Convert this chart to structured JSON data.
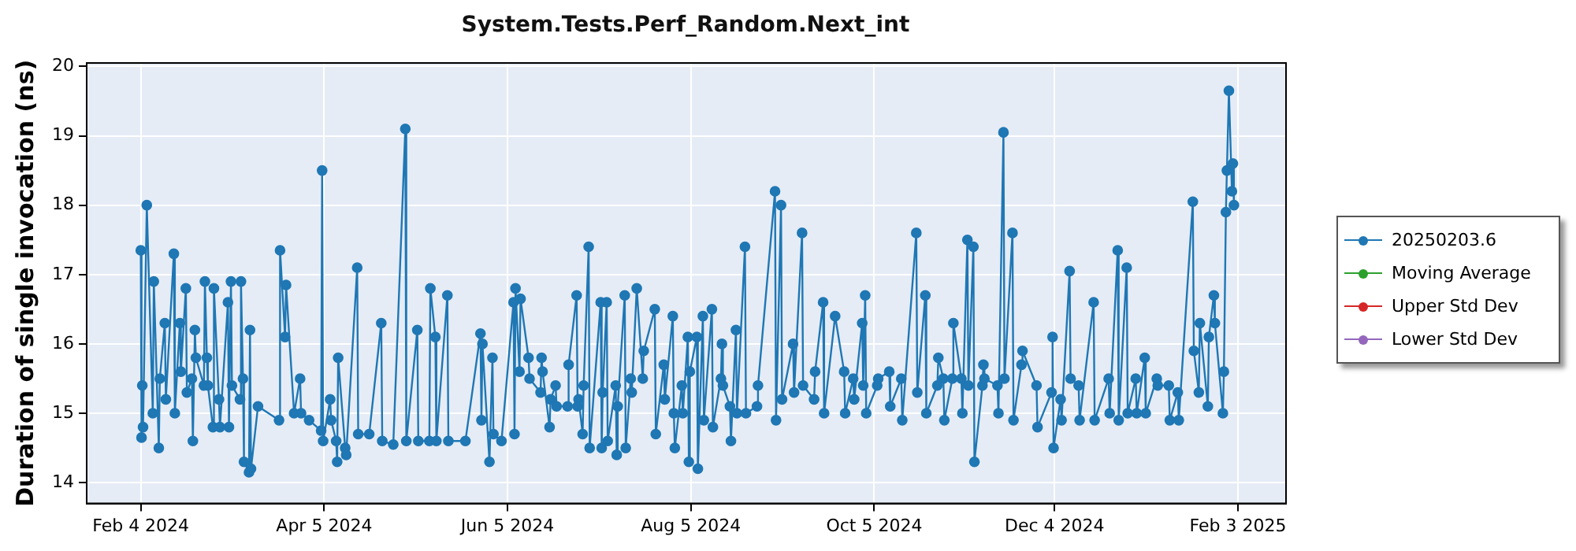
{
  "chart_data": {
    "type": "line",
    "title": "System.Tests.Perf_Random.Next_int",
    "ylabel": "Duration of single invocation (ns)",
    "xlim": [
      "2024-01-17",
      "2025-02-19"
    ],
    "xticks": [
      {
        "value": "2024-02-04",
        "label": "Feb 4 2024"
      },
      {
        "value": "2024-04-05",
        "label": "Apr 5 2024"
      },
      {
        "value": "2024-06-05",
        "label": "Jun 5 2024"
      },
      {
        "value": "2024-08-05",
        "label": "Aug 5 2024"
      },
      {
        "value": "2024-10-05",
        "label": "Oct 5 2024"
      },
      {
        "value": "2024-12-04",
        "label": "Dec 4 2024"
      },
      {
        "value": "2025-02-03",
        "label": "Feb 3 2025"
      }
    ],
    "ylim": [
      13.7,
      20.05
    ],
    "yticks": [
      14,
      15,
      16,
      17,
      18,
      19,
      20
    ],
    "grid": true,
    "legend": "right",
    "marker": "circle",
    "line_style": "solid",
    "series": [
      {
        "name": "20250203.6",
        "color": "#1f77b4",
        "x": [
          "2024-02-04",
          "2024-02-04T06:00",
          "2024-02-04T12:00",
          "2024-02-04T18:00",
          "2024-02-06",
          "2024-02-08",
          "2024-02-08T08:00",
          "2024-02-10",
          "2024-02-10T08:00",
          "2024-02-12",
          "2024-02-12T08:00",
          "2024-02-15",
          "2024-02-15T08:00",
          "2024-02-17",
          "2024-02-17T08:00",
          "2024-02-19",
          "2024-02-19T08:00",
          "2024-02-21",
          "2024-02-21T08:00",
          "2024-02-22",
          "2024-02-22T08:00",
          "2024-02-25",
          "2024-02-25T08:00",
          "2024-02-26",
          "2024-02-26T08:00",
          "2024-02-28",
          "2024-02-28T08:00",
          "2024-03-01",
          "2024-03-01T08:00",
          "2024-03-04",
          "2024-03-04T08:00",
          "2024-03-05",
          "2024-03-05T08:00",
          "2024-03-08",
          "2024-03-08T08:00",
          "2024-03-09",
          "2024-03-09T08:00",
          "2024-03-11",
          "2024-03-11T08:00",
          "2024-03-11T16:00",
          "2024-03-14",
          "2024-03-21",
          "2024-03-21T08:00",
          "2024-03-23",
          "2024-03-23T08:00",
          "2024-03-26",
          "2024-03-28",
          "2024-03-28T08:00",
          "2024-03-31",
          "2024-04-04",
          "2024-04-04T08:00",
          "2024-04-04T16:00",
          "2024-04-07",
          "2024-04-07T08:00",
          "2024-04-09",
          "2024-04-09T08:00",
          "2024-04-09T16:00",
          "2024-04-12",
          "2024-04-12T08:00",
          "2024-04-16",
          "2024-04-16T08:00",
          "2024-04-20",
          "2024-04-24",
          "2024-04-24T08:00",
          "2024-04-28",
          "2024-05-02",
          "2024-05-02T08:00",
          "2024-05-06",
          "2024-05-06T08:00",
          "2024-05-10",
          "2024-05-10T08:00",
          "2024-05-12",
          "2024-05-12T08:00",
          "2024-05-16",
          "2024-05-16T08:00",
          "2024-05-22",
          "2024-05-27",
          "2024-05-27T08:00",
          "2024-05-27T16:00",
          "2024-05-30",
          "2024-05-31",
          "2024-05-31T08:00",
          "2024-06-03",
          "2024-06-07",
          "2024-06-07T08:00",
          "2024-06-07T16:00",
          "2024-06-09",
          "2024-06-09T08:00",
          "2024-06-12",
          "2024-06-12T08:00",
          "2024-06-16",
          "2024-06-16T08:00",
          "2024-06-16T16:00",
          "2024-06-19",
          "2024-06-19T08:00",
          "2024-06-21",
          "2024-06-21T08:00",
          "2024-06-25",
          "2024-06-25T08:00",
          "2024-06-28",
          "2024-06-28T08:00",
          "2024-06-28T16:00",
          "2024-06-30",
          "2024-06-30T08:00",
          "2024-07-02",
          "2024-07-02T08:00",
          "2024-07-06",
          "2024-07-06T08:00",
          "2024-07-06T16:00",
          "2024-07-08",
          "2024-07-08T08:00",
          "2024-07-11",
          "2024-07-11T08:00",
          "2024-07-11T16:00",
          "2024-07-14",
          "2024-07-14T08:00",
          "2024-07-16",
          "2024-07-16T08:00",
          "2024-07-18",
          "2024-07-20",
          "2024-07-20T08:00",
          "2024-07-24",
          "2024-07-24T08:00",
          "2024-07-27",
          "2024-07-27T08:00",
          "2024-07-30",
          "2024-07-30T08:00",
          "2024-07-30T16:00",
          "2024-08-02",
          "2024-08-02T08:00",
          "2024-08-04",
          "2024-08-04T08:00",
          "2024-08-04T16:00",
          "2024-08-07",
          "2024-08-07T08:00",
          "2024-08-09",
          "2024-08-09T08:00",
          "2024-08-12",
          "2024-08-12T08:00",
          "2024-08-15",
          "2024-08-15T08:00",
          "2024-08-15T16:00",
          "2024-08-18",
          "2024-08-18T08:00",
          "2024-08-20",
          "2024-08-20T08:00",
          "2024-08-23",
          "2024-08-23T08:00",
          "2024-08-27",
          "2024-08-27T08:00",
          "2024-09-02",
          "2024-09-02T08:00",
          "2024-09-04",
          "2024-09-04T08:00",
          "2024-09-08",
          "2024-09-08T08:00",
          "2024-09-11",
          "2024-09-11T08:00",
          "2024-09-15",
          "2024-09-15T08:00",
          "2024-09-18",
          "2024-09-18T08:00",
          "2024-09-22",
          "2024-09-25",
          "2024-09-25T08:00",
          "2024-09-28",
          "2024-09-28T08:00",
          "2024-10-01",
          "2024-10-01T08:00",
          "2024-10-02",
          "2024-10-02T08:00",
          "2024-10-06",
          "2024-10-06T08:00",
          "2024-10-10",
          "2024-10-10T08:00",
          "2024-10-14",
          "2024-10-14T08:00",
          "2024-10-19",
          "2024-10-19T08:00",
          "2024-10-22",
          "2024-10-22T08:00",
          "2024-10-26",
          "2024-10-26T08:00",
          "2024-10-28",
          "2024-10-28T08:00",
          "2024-10-31",
          "2024-10-31T08:00",
          "2024-11-03",
          "2024-11-03T08:00",
          "2024-11-05",
          "2024-11-05T08:00",
          "2024-11-07",
          "2024-11-07T08:00",
          "2024-11-10",
          "2024-11-10T08:00",
          "2024-11-10T16:00",
          "2024-11-15",
          "2024-11-15T08:00",
          "2024-11-17",
          "2024-11-17T08:00",
          "2024-11-20",
          "2024-11-20T08:00",
          "2024-11-23",
          "2024-11-23T08:00",
          "2024-11-28",
          "2024-11-28T08:00",
          "2024-12-03",
          "2024-12-03T08:00",
          "2024-12-03T16:00",
          "2024-12-06",
          "2024-12-06T08:00",
          "2024-12-09",
          "2024-12-09T08:00",
          "2024-12-12",
          "2024-12-12T08:00",
          "2024-12-17",
          "2024-12-17T08:00",
          "2024-12-22",
          "2024-12-22T08:00",
          "2024-12-25",
          "2024-12-25T08:00",
          "2024-12-28",
          "2024-12-28T08:00",
          "2024-12-31",
          "2024-12-31T08:00",
          "2025-01-03",
          "2025-01-03T08:00",
          "2025-01-07",
          "2025-01-07T08:00",
          "2025-01-11",
          "2025-01-11T08:00",
          "2025-01-14",
          "2025-01-14T08:00",
          "2025-01-19",
          "2025-01-19T08:00",
          "2025-01-21",
          "2025-01-21T08:00",
          "2025-01-24",
          "2025-01-24T08:00",
          "2025-01-26",
          "2025-01-26T08:00",
          "2025-01-29",
          "2025-01-29T08:00",
          "2025-01-30",
          "2025-01-30T08:00",
          "2025-01-31",
          "2025-02-01",
          "2025-02-01T08:00",
          "2025-02-01T16:00"
        ],
        "values": [
          17.35,
          14.65,
          15.4,
          14.8,
          18.0,
          15.0,
          16.9,
          14.5,
          15.5,
          16.3,
          15.2,
          17.3,
          15.0,
          16.3,
          15.6,
          16.8,
          15.3,
          15.5,
          14.6,
          16.2,
          15.8,
          15.4,
          16.9,
          15.8,
          15.4,
          14.8,
          16.8,
          15.2,
          14.8,
          16.6,
          14.8,
          16.9,
          15.4,
          15.2,
          16.9,
          15.5,
          14.3,
          14.15,
          16.2,
          14.2,
          15.1,
          14.9,
          17.35,
          16.1,
          16.85,
          15.0,
          15.5,
          15.0,
          14.9,
          14.75,
          18.5,
          14.6,
          15.2,
          14.9,
          14.6,
          14.3,
          15.8,
          14.5,
          14.4,
          17.1,
          14.7,
          14.7,
          16.3,
          14.6,
          14.55,
          19.1,
          14.6,
          16.2,
          14.6,
          14.6,
          16.8,
          16.1,
          14.6,
          16.7,
          14.6,
          14.6,
          16.15,
          14.9,
          16.0,
          14.3,
          15.8,
          14.7,
          14.6,
          16.6,
          14.7,
          16.8,
          15.6,
          16.65,
          15.8,
          15.5,
          15.3,
          15.8,
          15.6,
          14.8,
          15.2,
          15.4,
          15.1,
          15.1,
          15.7,
          16.7,
          15.1,
          15.2,
          14.7,
          15.4,
          17.4,
          14.5,
          16.6,
          14.5,
          15.3,
          16.6,
          14.6,
          15.4,
          14.4,
          15.1,
          16.7,
          14.5,
          15.5,
          15.3,
          16.8,
          15.5,
          15.9,
          16.5,
          14.7,
          15.7,
          15.2,
          16.4,
          15.0,
          14.5,
          15.4,
          15.0,
          16.1,
          14.3,
          15.6,
          16.1,
          14.2,
          16.4,
          14.9,
          16.5,
          14.8,
          15.5,
          16.0,
          15.4,
          15.1,
          14.6,
          16.2,
          15.0,
          17.4,
          15.0,
          15.1,
          15.4,
          18.2,
          14.9,
          18.0,
          15.2,
          16.0,
          15.3,
          17.6,
          15.4,
          15.2,
          15.6,
          16.6,
          15.0,
          16.4,
          15.6,
          15.0,
          15.5,
          15.2,
          16.3,
          15.4,
          16.7,
          15.0,
          15.4,
          15.5,
          15.6,
          15.1,
          15.5,
          14.9,
          17.6,
          15.3,
          16.7,
          15.0,
          15.4,
          15.8,
          15.5,
          14.9,
          15.5,
          16.3,
          15.5,
          15.0,
          17.5,
          15.4,
          17.4,
          14.3,
          15.4,
          15.7,
          15.5,
          15.4,
          15.0,
          19.05,
          15.5,
          17.6,
          14.9,
          15.7,
          15.9,
          15.4,
          14.8,
          15.3,
          16.1,
          14.5,
          15.2,
          14.9,
          17.05,
          15.5,
          15.4,
          14.9,
          16.6,
          14.9,
          15.5,
          15.0,
          17.35,
          14.9,
          17.1,
          15.0,
          15.5,
          15.0,
          15.8,
          15.0,
          15.5,
          15.4,
          15.4,
          14.9,
          15.3,
          14.9,
          18.05,
          15.9,
          15.3,
          16.3,
          15.1,
          16.1,
          16.7,
          16.3,
          15.0,
          15.6,
          17.9,
          18.5,
          19.65,
          18.2,
          18.6,
          18.0
        ]
      },
      {
        "name": "Moving Average",
        "color": "#2ca02c"
      },
      {
        "name": "Upper Std Dev",
        "color": "#d62728"
      },
      {
        "name": "Lower Std Dev",
        "color": "#9467bd"
      }
    ]
  }
}
